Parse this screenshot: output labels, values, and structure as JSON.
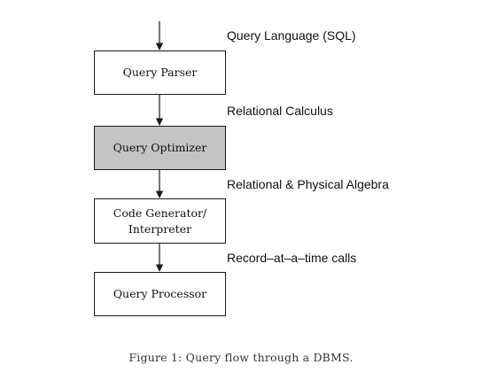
{
  "diagram": {
    "boxes": [
      {
        "label": "Query Parser",
        "fill": "#ffffff"
      },
      {
        "label": "Query Optimizer",
        "fill": "#c3c3c3"
      },
      {
        "label": "Code Generator/\nInterpreter",
        "fill": "#ffffff"
      },
      {
        "label": "Query Processor",
        "fill": "#ffffff"
      }
    ],
    "edge_labels": [
      "Query Language (SQL)",
      "Relational Calculus",
      "Relational & Physical Algebra",
      "Record–at–a–time calls"
    ],
    "caption": "Figure 1: Query flow through a DBMS."
  }
}
